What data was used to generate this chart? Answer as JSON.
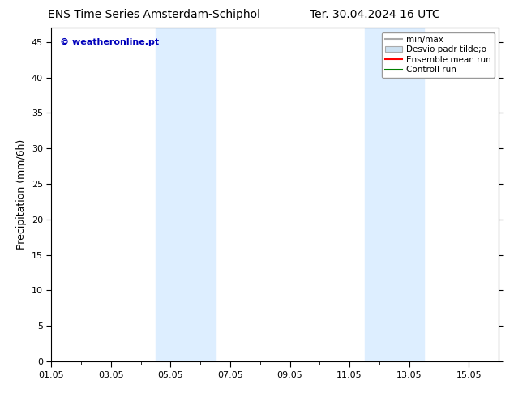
{
  "title_left": "ENS Time Series Amsterdam-Schiphol",
  "title_right": "Ter. 30.04.2024 16 UTC",
  "ylabel": "Precipitation (mm/6h)",
  "xlabel": "",
  "ylim": [
    0,
    47
  ],
  "yticks": [
    0,
    5,
    10,
    15,
    20,
    25,
    30,
    35,
    40,
    45
  ],
  "xlim": [
    0,
    15
  ],
  "xtick_labels": [
    "01.05",
    "03.05",
    "05.05",
    "07.05",
    "09.05",
    "11.05",
    "13.05",
    "15.05"
  ],
  "xtick_positions": [
    0,
    2,
    4,
    6,
    8,
    10,
    12,
    14
  ],
  "shaded_regions": [
    {
      "xmin": 3.5,
      "xmax": 5.5,
      "color": "#ddeeff"
    },
    {
      "xmin": 10.5,
      "xmax": 12.5,
      "color": "#ddeeff"
    }
  ],
  "watermark_text": "© weatheronline.pt",
  "watermark_color": "#0000bb",
  "legend_entries": [
    {
      "label": "min/max",
      "color": "#aaaaaa",
      "lw": 1.5,
      "ls": "-",
      "type": "line"
    },
    {
      "label": "Desvio padr tilde;o",
      "facecolor": "#cce0f0",
      "edgecolor": "#aaaaaa",
      "type": "patch"
    },
    {
      "label": "Ensemble mean run",
      "color": "#ff0000",
      "lw": 1.5,
      "ls": "-",
      "type": "line"
    },
    {
      "label": "Controll run",
      "color": "#008000",
      "lw": 1.5,
      "ls": "-",
      "type": "line"
    }
  ],
  "bg_color": "#ffffff",
  "plot_bg_color": "#ffffff",
  "title_fontsize": 10,
  "axis_label_fontsize": 9,
  "tick_fontsize": 8,
  "legend_fontsize": 7.5
}
